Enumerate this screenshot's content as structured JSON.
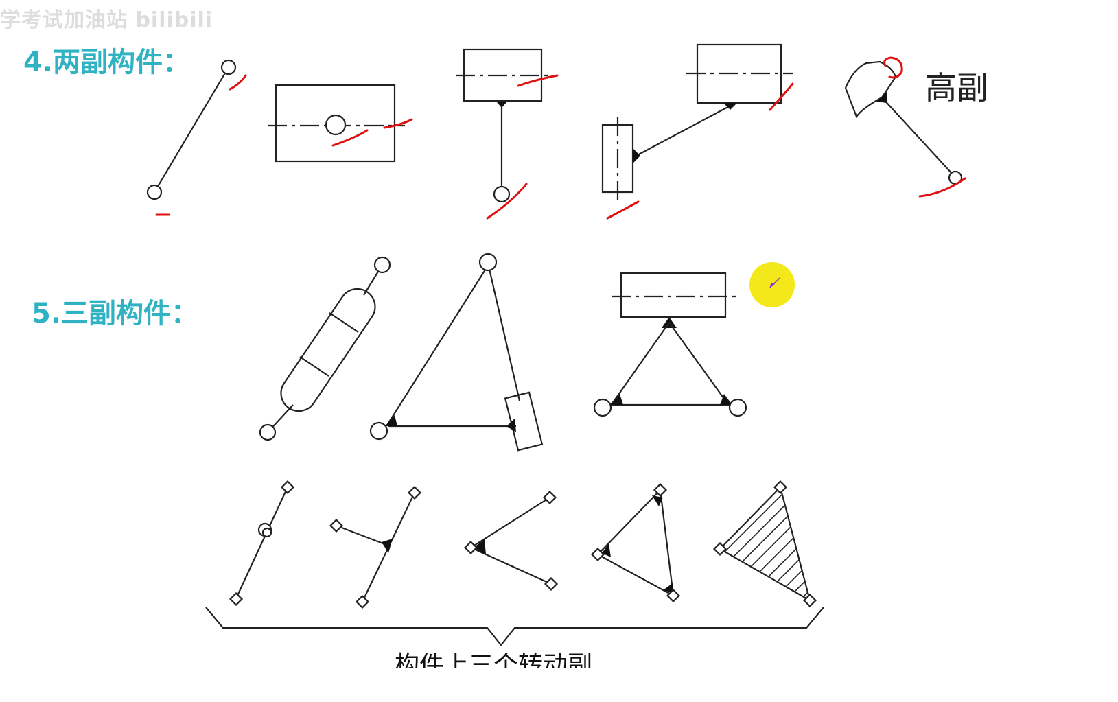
{
  "watermark": "学考试加油站 bilibili",
  "section4": {
    "heading": "4.两副构件："
  },
  "section5": {
    "heading": "5.三副构件："
  },
  "higher_pair_label": "高副",
  "bottom_caption": "构件上三个转动副",
  "colors": {
    "heading": "#2fb3c3",
    "annotation": "#e01010",
    "cursor_highlight": "#f2e600",
    "line": "#222222"
  },
  "cursor": {
    "icon": "arrow-cursor-icon"
  }
}
